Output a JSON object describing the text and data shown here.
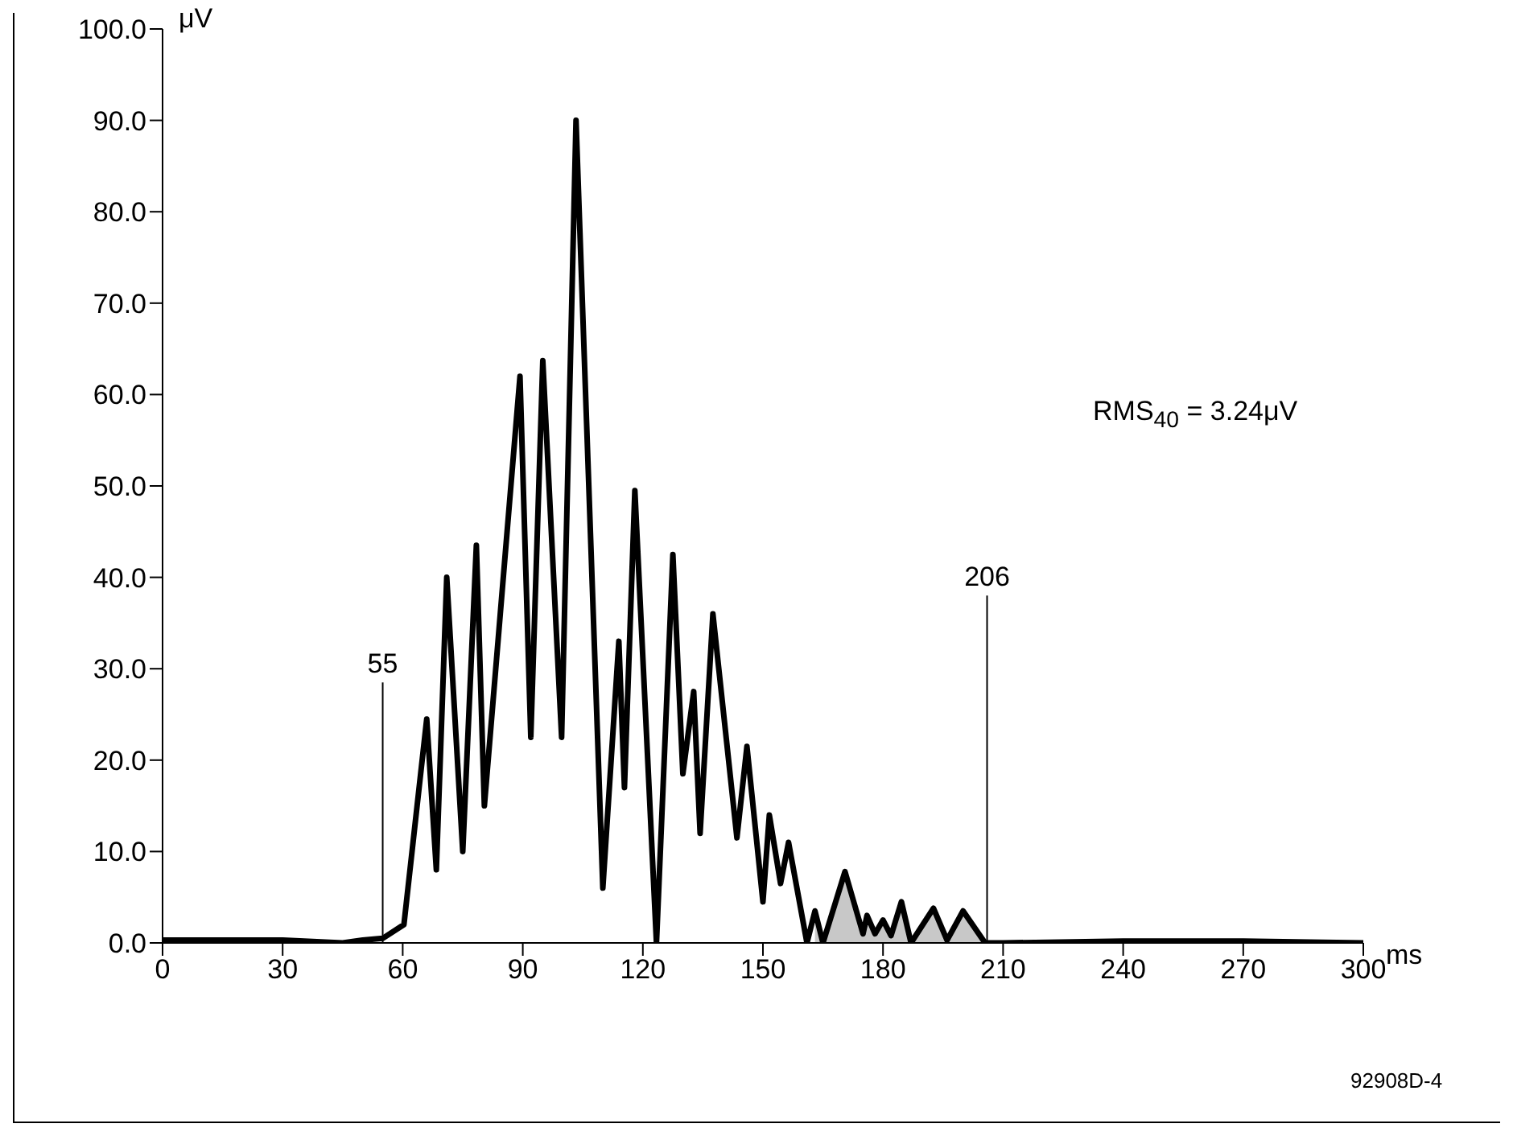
{
  "chart_data": {
    "type": "line",
    "xlabel": "ms",
    "ylabel": "μV",
    "xlim": [
      0,
      300
    ],
    "xticks": [
      0,
      30,
      60,
      90,
      120,
      150,
      180,
      210,
      240,
      270,
      300
    ],
    "ylim": [
      0,
      100
    ],
    "yticks": [
      {
        "value": 0,
        "label": "0.0"
      },
      {
        "value": 10,
        "label": "10.0"
      },
      {
        "value": 20,
        "label": "20.0"
      },
      {
        "value": 30,
        "label": "30.0"
      },
      {
        "value": 40,
        "label": "40.0"
      },
      {
        "value": 50,
        "label": "50.0"
      },
      {
        "value": 60,
        "label": "60.0"
      },
      {
        "value": 70,
        "label": "70.0"
      },
      {
        "value": 80,
        "label": "80.0"
      },
      {
        "value": 90,
        "label": "90.0"
      },
      {
        "value": 100,
        "label": "100.0"
      }
    ],
    "series": [
      {
        "type": "area",
        "color": "#c8c8c8",
        "x": [
          163,
          165,
          170.5,
          175,
          176,
          178,
          180,
          182,
          184.6,
          187,
          192.6,
          196,
          200,
          205.5
        ],
        "values": [
          3.5,
          0,
          7.8,
          1,
          3,
          1,
          2.5,
          0.8,
          4.5,
          0,
          3.8,
          0.3,
          3.5,
          0
        ]
      },
      {
        "color": "#000000",
        "x": [
          0,
          15,
          30,
          45,
          50,
          55,
          60.3,
          66,
          68.4,
          71,
          75,
          78.4,
          80.4,
          89.3,
          92,
          95,
          99.7,
          103.3,
          110,
          114,
          115.4,
          118,
          123.4,
          127.5,
          130,
          132.7,
          134.3,
          137.5,
          143.5,
          146,
          150,
          151.6,
          154.4,
          156.4,
          161,
          163,
          165,
          170.5,
          175,
          176,
          178,
          180,
          182,
          184.6,
          187,
          192.6,
          196,
          200,
          205.5,
          210,
          240,
          270,
          300
        ],
        "values": [
          0.3,
          0.3,
          0.3,
          0,
          0.3,
          0.5,
          2,
          24.5,
          8,
          40,
          10,
          43.5,
          15,
          62,
          22.5,
          63.7,
          22.5,
          90,
          6,
          33,
          17,
          49.5,
          0,
          42.5,
          18.5,
          27.5,
          12,
          36,
          11.5,
          21.5,
          4.5,
          14,
          6.5,
          11,
          0,
          3.5,
          0,
          7.8,
          1,
          3,
          1,
          2.5,
          0.8,
          4.5,
          0,
          3.8,
          0.3,
          3.5,
          0,
          0,
          0.2,
          0.2,
          0
        ]
      }
    ],
    "ref_lines": [
      {
        "axis": "x",
        "value": 55,
        "label": "55",
        "color": "#000000"
      },
      {
        "axis": "x",
        "value": 206,
        "label": "206",
        "color": "#000000"
      }
    ],
    "annotations": [
      "RMS$_{40}$ = 3.24μV",
      "92908D-4"
    ],
    "marker": "none",
    "line_style": "solid"
  }
}
